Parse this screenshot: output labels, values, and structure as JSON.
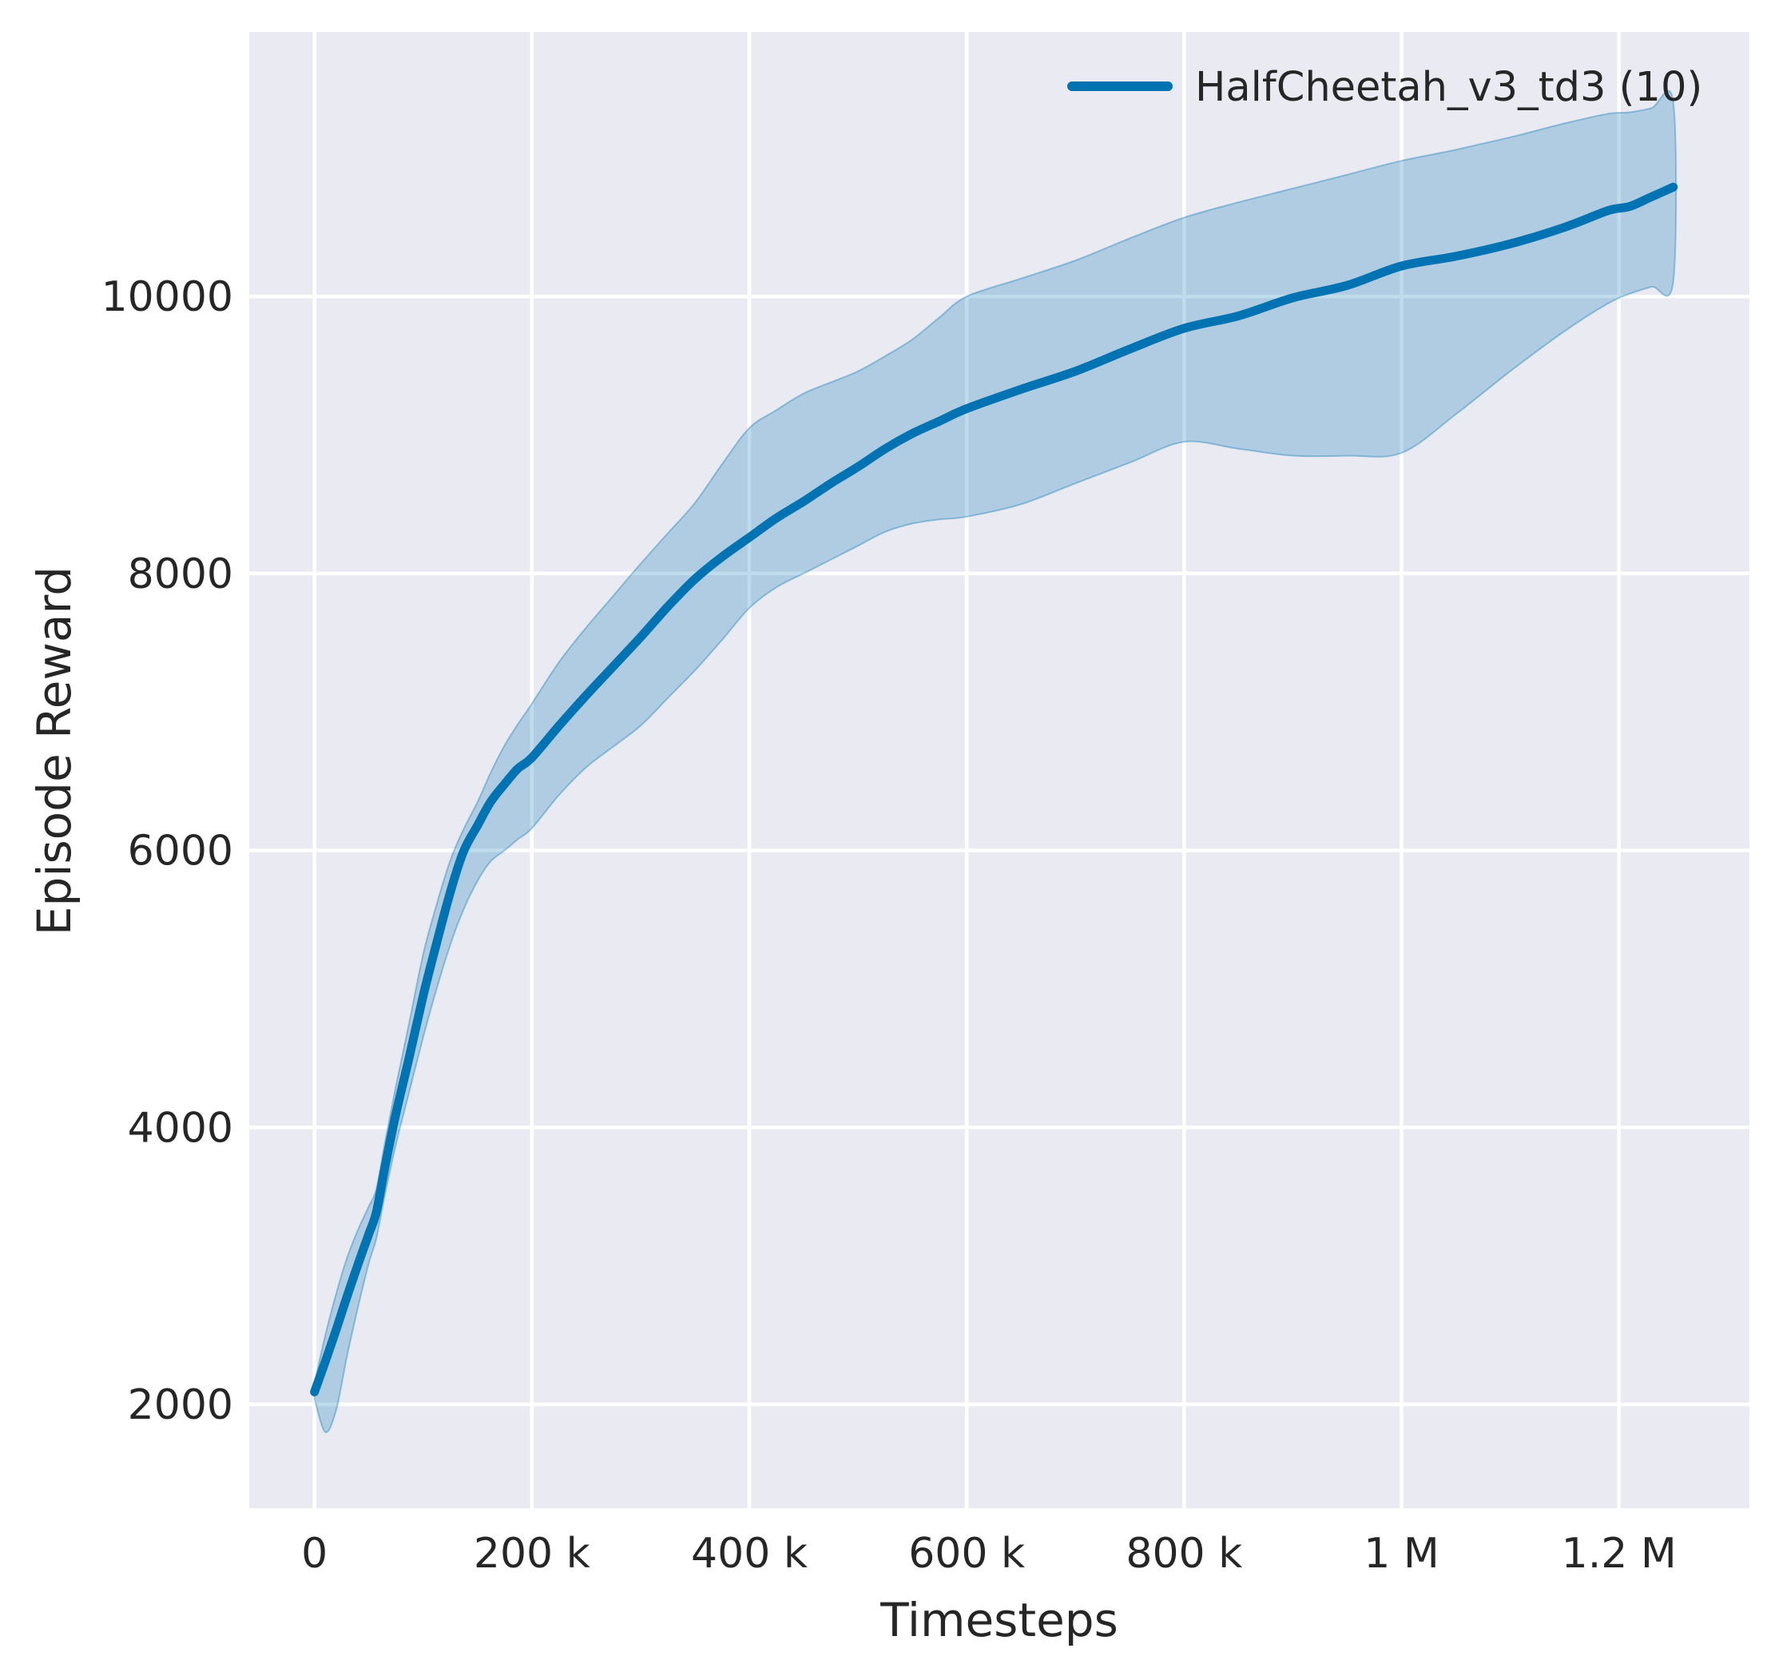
{
  "chart_data": {
    "type": "line",
    "title": "",
    "xlabel": "Timesteps",
    "ylabel": "Episode Reward",
    "grid": true,
    "legend_position": "upper right",
    "xlim": [
      -60000,
      1320000
    ],
    "ylim": [
      1250,
      11910
    ],
    "x_ticks": [
      {
        "value": 0,
        "label": "0"
      },
      {
        "value": 200000,
        "label": "200 k"
      },
      {
        "value": 400000,
        "label": "400 k"
      },
      {
        "value": 600000,
        "label": "600 k"
      },
      {
        "value": 800000,
        "label": "800 k"
      },
      {
        "value": 1000000,
        "label": "1 M"
      },
      {
        "value": 1200000,
        "label": "1.2 M"
      }
    ],
    "y_ticks": [
      {
        "value": 2000,
        "label": "2000"
      },
      {
        "value": 4000,
        "label": "4000"
      },
      {
        "value": 6000,
        "label": "6000"
      },
      {
        "value": 8000,
        "label": "8000"
      },
      {
        "value": 10000,
        "label": "10000"
      }
    ],
    "colors": {
      "plot_bg": "#eaeaf2",
      "grid": "#ffffff",
      "text": "#262626",
      "accent": "#0173b2"
    },
    "series": [
      {
        "name": "HalfCheetah_v3_td3 (10)",
        "color": "#0173b2",
        "band_fill": "rgba(1,115,178,0.25)",
        "band_edge": "rgba(1,115,178,0.35)",
        "x": [
          0,
          10000,
          20000,
          30000,
          40000,
          50000,
          57000,
          65000,
          75000,
          87000,
          100000,
          112000,
          125000,
          137000,
          150000,
          162000,
          175000,
          187000,
          200000,
          225000,
          250000,
          275000,
          300000,
          325000,
          350000,
          375000,
          400000,
          425000,
          450000,
          475000,
          500000,
          525000,
          550000,
          575000,
          600000,
          650000,
          700000,
          750000,
          800000,
          850000,
          900000,
          950000,
          1000000,
          1050000,
          1100000,
          1150000,
          1190000,
          1210000,
          1230000,
          1250000
        ],
        "mean": [
          2090,
          2310,
          2540,
          2780,
          3010,
          3230,
          3390,
          3720,
          4100,
          4500,
          4950,
          5320,
          5700,
          5990,
          6180,
          6350,
          6480,
          6590,
          6670,
          6900,
          7120,
          7330,
          7540,
          7760,
          7960,
          8120,
          8260,
          8400,
          8520,
          8650,
          8770,
          8900,
          9010,
          9100,
          9190,
          9330,
          9460,
          9620,
          9770,
          9860,
          9990,
          10080,
          10220,
          10290,
          10380,
          10500,
          10620,
          10650,
          10720,
          10790
        ],
        "lo": [
          2040,
          1800,
          1960,
          2350,
          2700,
          3020,
          3200,
          3520,
          3880,
          4250,
          4650,
          4990,
          5320,
          5570,
          5780,
          5920,
          6000,
          6080,
          6160,
          6400,
          6600,
          6750,
          6900,
          7100,
          7300,
          7520,
          7750,
          7900,
          8000,
          8100,
          8200,
          8300,
          8360,
          8390,
          8410,
          8500,
          8650,
          8800,
          8950,
          8900,
          8850,
          8850,
          8870,
          9150,
          9460,
          9750,
          9950,
          10020,
          10070,
          10110
        ],
        "hi": [
          2150,
          2500,
          2800,
          3060,
          3260,
          3430,
          3560,
          3900,
          4300,
          4750,
          5250,
          5600,
          5930,
          6150,
          6350,
          6560,
          6760,
          6910,
          7060,
          7360,
          7610,
          7840,
          8070,
          8290,
          8510,
          8790,
          9050,
          9180,
          9300,
          9380,
          9460,
          9570,
          9690,
          9850,
          10000,
          10130,
          10260,
          10420,
          10570,
          10680,
          10780,
          10880,
          10980,
          11060,
          11150,
          11250,
          11320,
          11330,
          11360,
          11400
        ]
      }
    ]
  }
}
